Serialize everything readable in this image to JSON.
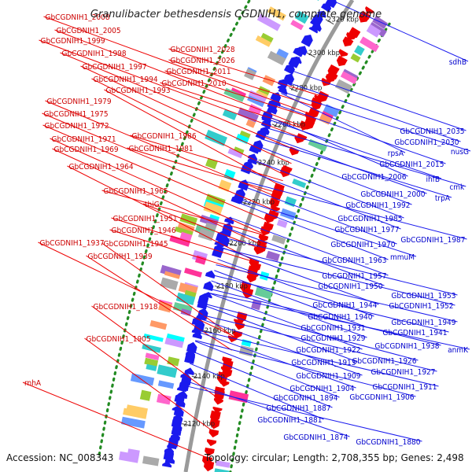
{
  "title": "Granulibacter bethesdensis CGDNIH1, complete genome",
  "footer": {
    "accession": "Accession: NC_008343",
    "topology": "Topology: circular; Length: 2,708,355 bp; Genes: 2,498"
  },
  "colors": {
    "forward": "#ee0000",
    "reverse": "#1a1aee",
    "backbone": "#999999",
    "orf": "#228b22"
  },
  "ticks": [
    "2320 kbp",
    "2300 kbp",
    "2280 kbp",
    "2260 kbp",
    "2240 kbp",
    "2220 kbp",
    "2200 kbp",
    "2180 kbp",
    "2160 kbp",
    "2140 kbp",
    "2120 kbp"
  ],
  "left_labels": [
    "GbCGDNIH1_2008",
    "GbCGDNIH1_2005",
    "GbCGDNIH1_1999",
    "GbCGDNIH1_1998",
    "GbCGDNIH1_1997",
    "GbCGDNIH1_1994",
    "GbCGDNIH1_1993",
    "GbCGDNIH1_1979",
    "GbCGDNIH1_1975",
    "GbCGDNIH1_1972",
    "GbCGDNIH1_1971",
    "GbCGDNIH1_1969",
    "GbCGDNIH1_1964",
    "GbCGDNIH1_1937",
    "GbCGDNIH1_1945",
    "GbCGDNIH1_1939",
    "GbCGDNIH1_1918",
    "GbCGDNIH1_1905",
    "rnhA"
  ],
  "inner_left_labels": [
    "GbCGDNIH1_2028",
    "GbCGDNIH1_2026",
    "GbCGDNIH1_2011",
    "GbCGDNIH1_2010",
    "GbCGDNIH1_1986",
    "GbCGDNIH1_1981",
    "GbCGDNIH1_1965",
    "thiG",
    "GbCGDNIH1_1951",
    "GbCGDNIH1_1946"
  ],
  "right_labels": [
    "sdhB",
    "GbCGDNIH1_2035",
    "GbCGDNIH1_2030",
    "nusG",
    "rpsA",
    "GbCGDNIH1_2015",
    "ihfB",
    "GbCGDNIH1_2006",
    "cmk",
    "GbCGDNIH1_2000",
    "trpA",
    "GbCGDNIH1_1992",
    "GbCGDNIH1_1985",
    "GbCGDNIH1_1977",
    "GbCGDNIH1_1987",
    "GbCGDNIH1_1970",
    "mmuM",
    "GbCGDNIH1_1963",
    "GbCGDNIH1_1957",
    "GbCGDNIH1_1950",
    "GbCGDNIH1_1953",
    "GbCGDNIH1_1944",
    "GbCGDNIH1_1952",
    "GbCGDNIH1_1940",
    "GbCGDNIH1_1949",
    "GbCGDNIH1_1931",
    "GbCGDNIH1_1941",
    "GbCGDNIH1_1929",
    "GbCGDNIH1_1938",
    "anmK",
    "GbCGDNIH1_1922",
    "GbCGDNIH1_1926",
    "GbCGDNIH1_1913",
    "GbCGDNIH1_1927",
    "GbCGDNIH1_1909",
    "GbCGDNIH1_1911",
    "GbCGDNIH1_1904",
    "GbCGDNIH1_1894",
    "GbCGDNIH1_1906",
    "GbCGDNIH1_1887",
    "GbCGDNIH1_1881",
    "GbCGDNIH1_1874",
    "GbCGDNIH1_1880"
  ]
}
